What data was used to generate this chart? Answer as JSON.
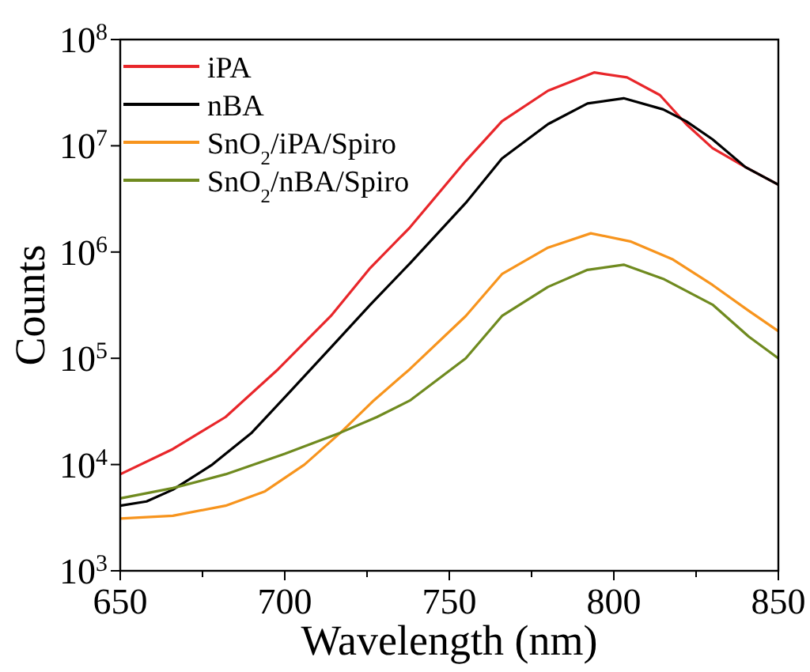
{
  "chart_data": {
    "type": "line",
    "xlabel": "Wavelength (nm)",
    "ylabel": "Counts",
    "log": "y",
    "xlim": [
      650,
      850
    ],
    "ylim": [
      1000,
      100000000
    ],
    "xticks": [
      650,
      {
        "value": 675,
        "label": null
      },
      700,
      {
        "value": 725,
        "label": null
      },
      750,
      {
        "value": 775,
        "label": null
      },
      800,
      {
        "value": 825,
        "label": null
      },
      850
    ],
    "yticks": [
      {
        "value": 1000,
        "label": "10$^{3}$"
      },
      {
        "value": 10000,
        "label": "10$^{4}$"
      },
      {
        "value": 100000,
        "label": "10$^{5}$"
      },
      {
        "value": 1000000,
        "label": "10$^{6}$"
      },
      {
        "value": 10000000,
        "label": "10$^{7}$"
      },
      {
        "value": 100000000,
        "label": "10$^{8}$"
      }
    ],
    "legend": "top left",
    "grid": false,
    "marker": "none",
    "line_style": "solid",
    "series": [
      {
        "name": "iPA",
        "color": "#e8262a",
        "x": [
          650,
          666,
          682,
          698,
          714,
          726,
          738,
          755,
          766,
          780,
          794,
          804,
          814,
          822,
          830,
          840,
          850
        ],
        "values": [
          8100,
          14000,
          28000,
          79000,
          250000,
          710000,
          1700000,
          7200000,
          17000000,
          33000000,
          49000000,
          44000000,
          30000000,
          16000000,
          9500000,
          6300000,
          4300000
        ]
      },
      {
        "name": "nBA",
        "color": "#000000",
        "x": [
          650,
          658,
          666,
          678,
          690,
          702,
          714,
          726,
          738,
          755,
          766,
          780,
          792,
          803,
          815,
          822,
          830,
          840,
          850
        ],
        "values": [
          4100,
          4500,
          5800,
          10000,
          20000,
          50000,
          126000,
          320000,
          780000,
          2900000,
          7600000,
          16000000,
          25000000,
          28000000,
          22000000,
          17000000,
          11500000,
          6300000,
          4300000
        ]
      },
      {
        "name": "SnO$_{2}$/iPA/Spiro",
        "color": "#f7941d",
        "x": [
          650,
          666,
          682,
          694,
          706,
          717,
          727,
          738,
          755,
          766,
          780,
          793,
          805,
          818,
          830,
          841,
          850
        ],
        "values": [
          3100,
          3300,
          4100,
          5600,
          10000,
          20000,
          40000,
          79000,
          250000,
          620000,
          1100000,
          1500000,
          1260000,
          850000,
          490000,
          280000,
          180000
        ]
      },
      {
        "name": "SnO$_{2}$/nBA/Spiro",
        "color": "#6f8a1f",
        "x": [
          650,
          666,
          682,
          700,
          717,
          728,
          738,
          755,
          766,
          780,
          792,
          803,
          815,
          830,
          841,
          850
        ],
        "values": [
          4800,
          6000,
          8100,
          12600,
          20000,
          28000,
          40000,
          100000,
          250000,
          470000,
          680000,
          760000,
          560000,
          320000,
          160000,
          100000
        ]
      }
    ]
  }
}
